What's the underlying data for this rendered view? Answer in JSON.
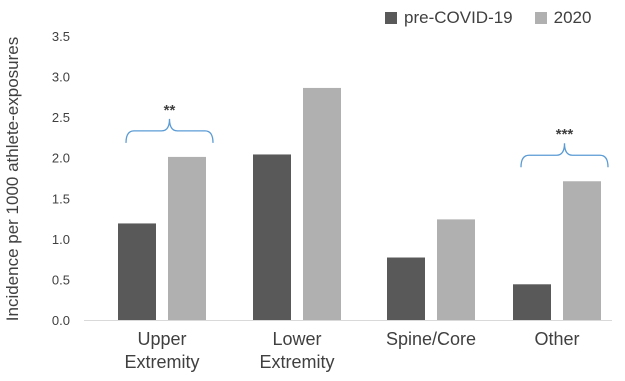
{
  "chart_data": {
    "type": "bar",
    "title": "",
    "xlabel": "",
    "ylabel": "Incidence per 1000 athlete-exposures",
    "ylim": [
      0,
      3.5
    ],
    "yticks": [
      "0.0",
      "0.5",
      "1.0",
      "1.5",
      "2.0",
      "2.5",
      "3.0",
      "3.5"
    ],
    "categories": [
      "Upper\nExtremity",
      "Lower\nExtremity",
      "Spine/Core",
      "Other"
    ],
    "series": [
      {
        "name": "pre-COVID-19",
        "color": "#595959",
        "values": [
          1.19,
          2.04,
          0.77,
          0.44
        ]
      },
      {
        "name": "2020",
        "color": "#b0b0b0",
        "values": [
          2.01,
          2.86,
          1.24,
          1.71
        ]
      }
    ],
    "legend_position": "top-right",
    "grid": false,
    "annotations": [
      {
        "category": "Upper\nExtremity",
        "text": "**"
      },
      {
        "category": "Other",
        "text": "***"
      }
    ],
    "bracket_color": "#5b9bd5"
  }
}
